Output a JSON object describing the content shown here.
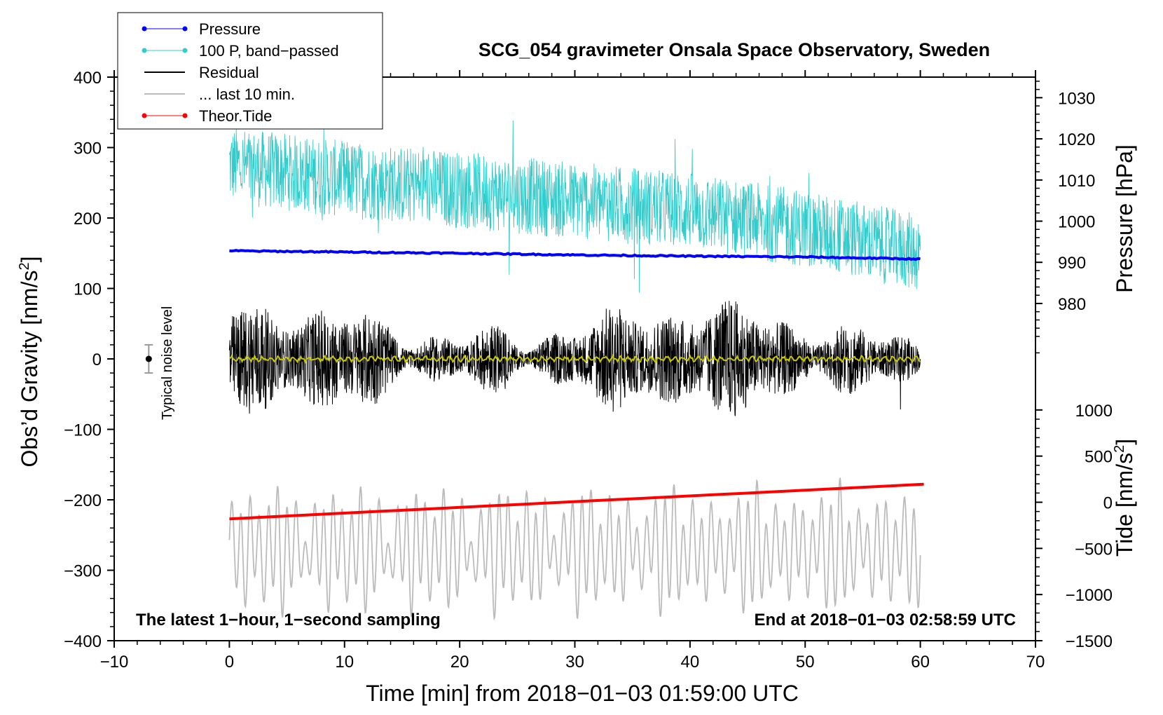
{
  "chart_data": {
    "type": "line",
    "title": "SCG_054 gravimeter Onsala Space Observatory, Sweden",
    "xlabel": "Time [min] from 2018−01−03 01:59:00 UTC",
    "ylabel_main": "Obs’d Gravity [nm/s",
    "ylabel_main_sup": "2",
    "ylabel_main_end": "]",
    "ylabel_pressure": "Pressure [hPa]",
    "ylabel_tide": "Tide [nm/s",
    "ylabel_tide_sup": "2",
    "ylabel_tide_end": "]",
    "xlim": [
      -10,
      70
    ],
    "ylim": [
      -400,
      400
    ],
    "pressure_lim": [
      965,
      1035
    ],
    "tide_lim": [
      -1500,
      1500
    ],
    "x_ticks": [
      "−10",
      "0",
      "10",
      "20",
      "30",
      "40",
      "50",
      "60",
      "70"
    ],
    "x_tick_values": [
      -10,
      0,
      10,
      20,
      30,
      40,
      50,
      60,
      70
    ],
    "y_ticks": [
      "400",
      "300",
      "200",
      "100",
      "0",
      "−100",
      "−200",
      "−300",
      "−400"
    ],
    "y_tick_values": [
      400,
      300,
      200,
      100,
      0,
      -100,
      -200,
      -300,
      -400
    ],
    "pressure_ticks": [
      "1030",
      "1020",
      "1010",
      "1000",
      "990",
      "980"
    ],
    "pressure_tick_values": [
      1030,
      1020,
      1010,
      1000,
      990,
      980
    ],
    "tide_ticks": [
      "1000",
      "500",
      "0",
      "−500",
      "−1000",
      "−1500"
    ],
    "tide_tick_values": [
      1000,
      500,
      0,
      -500,
      -1000,
      -1500
    ],
    "legend": [
      {
        "label": "Pressure",
        "color": "#0000ff",
        "marker": true,
        "width": 1
      },
      {
        "label": "100 P, band−passed",
        "color": "#33cccc",
        "marker": true,
        "width": 1
      },
      {
        "label": "Residual",
        "color": "#000000",
        "marker": false,
        "width": 2
      },
      {
        "label": "... last 10 min.",
        "color": "#bbbbbb",
        "marker": false,
        "width": 2
      },
      {
        "label": "Theor.Tide",
        "color": "#ff0000",
        "marker": true,
        "width": 1
      }
    ],
    "series": [
      {
        "name": "Pressure",
        "color": "#0000ff",
        "axis": "pressure",
        "x": [
          0,
          10,
          20,
          30,
          40,
          50,
          60
        ],
        "values": [
          992.8,
          992.5,
          992.2,
          991.8,
          991.5,
          991.3,
          990.8
        ]
      },
      {
        "name": "100 P, band−passed",
        "color": "#33cccc",
        "axis": "gravity",
        "x": [
          0,
          10,
          20,
          30,
          40,
          50,
          60
        ],
        "values": [
          275,
          255,
          240,
          225,
          210,
          185,
          150
        ]
      },
      {
        "name": "Residual",
        "color": "#000000",
        "axis": "gravity",
        "x": [
          0,
          60
        ],
        "values": [
          0,
          0
        ]
      },
      {
        "name": "Residual (smoothed)",
        "color": "#c8c800",
        "axis": "gravity",
        "x": [
          0,
          60
        ],
        "values": [
          0,
          0
        ]
      },
      {
        "name": "... last 10 min.",
        "color": "#bbbbbb",
        "axis": "gravity",
        "x": [
          0,
          60
        ],
        "values": [
          -270,
          -270
        ]
      },
      {
        "name": "Theor.Tide",
        "color": "#ff0000",
        "axis": "tide",
        "x": [
          0,
          60.3
        ],
        "values": [
          -180,
          195
        ]
      }
    ],
    "noise_marker": {
      "x": -7,
      "value": 0,
      "range": [
        -20,
        20
      ],
      "label": "Typical noise level"
    },
    "footer_left": "The latest 1−hour, 1−second sampling",
    "footer_right": "End at 2018−01−03 02:58:59 UTC"
  }
}
